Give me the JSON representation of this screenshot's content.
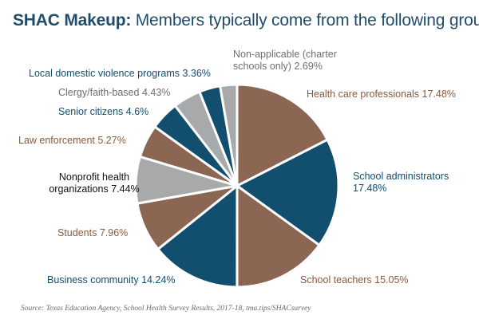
{
  "header": {
    "title_bold": "SHAC Makeup:",
    "title_rest": "Members typically come from the following groups"
  },
  "colors": {
    "brown": "#8b6652",
    "navy": "#124e6e",
    "gray": "#a7a9ab",
    "black": "#111111",
    "brown_text": "#8a5a3e",
    "navy_text": "#124e6e",
    "gray_text": "#6e6e6e"
  },
  "chart_data": {
    "type": "pie",
    "title": "SHAC Makeup: Members typically come from the following groups",
    "unit": "%",
    "slices": [
      {
        "label": "Health care professionals",
        "value": 17.48,
        "value_text": "17.48%",
        "color": "brown"
      },
      {
        "label": "School administrators",
        "value": 17.48,
        "value_text": "17.48%",
        "color": "navy"
      },
      {
        "label": "School teachers",
        "value": 15.05,
        "value_text": "15.05%",
        "color": "brown"
      },
      {
        "label": "Business community",
        "value": 14.24,
        "value_text": "14.24%",
        "color": "navy"
      },
      {
        "label": "Students",
        "value": 7.96,
        "value_text": "7.96%",
        "color": "brown"
      },
      {
        "label": "Nonprofit health organizations",
        "value": 7.44,
        "value_text": "7.44%",
        "color": "gray"
      },
      {
        "label": "Law enforcement",
        "value": 5.27,
        "value_text": "5.27%",
        "color": "brown"
      },
      {
        "label": "Senior citizens",
        "value": 4.6,
        "value_text": "4.6%",
        "color": "navy"
      },
      {
        "label": "Clergy/faith-based",
        "value": 4.43,
        "value_text": "4.43%",
        "color": "gray"
      },
      {
        "label": "Local domestic violence programs",
        "value": 3.36,
        "value_text": "3.36%",
        "color": "navy"
      },
      {
        "label": "Non-applicable (charter schools only)",
        "value": 2.69,
        "value_text": "2.69%",
        "color": "gray"
      }
    ]
  },
  "footer": {
    "source": "Source: Texas Education Agency, School Health Survey Results, 2017-18, tma.tips/SHACsurvey"
  }
}
